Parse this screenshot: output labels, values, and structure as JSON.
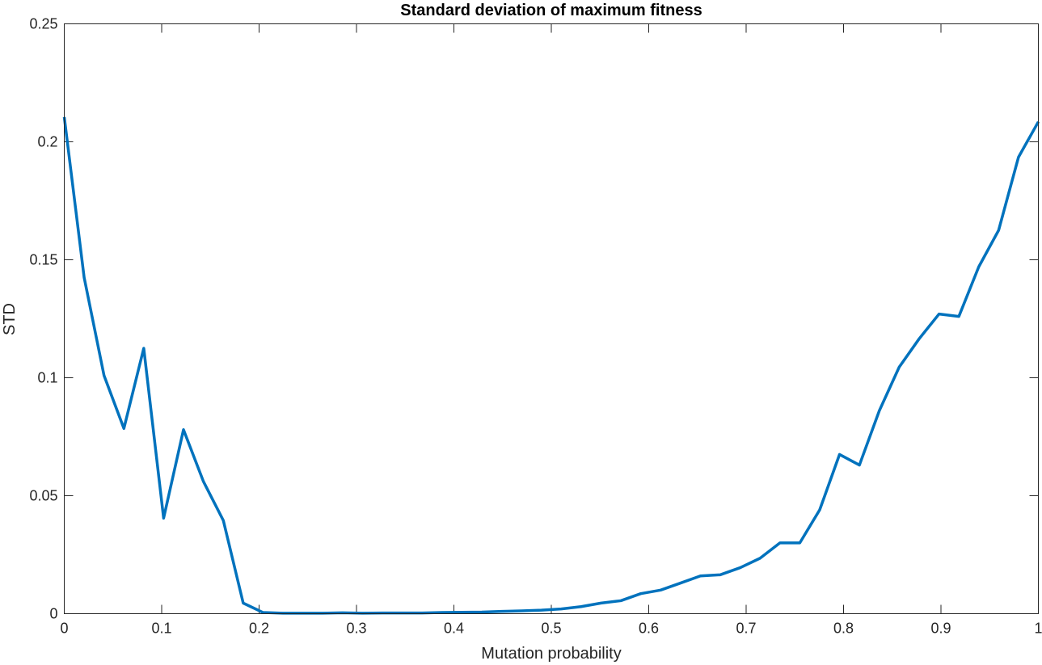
{
  "chart_data": {
    "type": "line",
    "title": "Standard deviation of maximum fitness",
    "xlabel": "Mutation probability",
    "ylabel": "STD",
    "xlim": [
      0,
      1
    ],
    "ylim": [
      0,
      0.25
    ],
    "xticks": [
      0,
      0.1,
      0.2,
      0.3,
      0.4,
      0.5,
      0.6,
      0.7,
      0.8,
      0.9,
      1
    ],
    "xtick_labels": [
      "0",
      "0.1",
      "0.2",
      "0.3",
      "0.4",
      "0.5",
      "0.6",
      "0.7",
      "0.8",
      "0.9",
      "1"
    ],
    "yticks": [
      0,
      0.05,
      0.1,
      0.15,
      0.2,
      0.25
    ],
    "ytick_labels": [
      "0",
      "0.05",
      "0.1",
      "0.15",
      "0.2",
      "0.25"
    ],
    "grid": false,
    "line_color": "#0072BD",
    "series": [
      {
        "x": [
          0,
          0.0204,
          0.0408,
          0.0612,
          0.0816,
          0.102,
          0.1224,
          0.1429,
          0.1633,
          0.1837,
          0.2041,
          0.2245,
          0.2449,
          0.2653,
          0.2857,
          0.3061,
          0.3265,
          0.3469,
          0.3673,
          0.3878,
          0.4082,
          0.4286,
          0.449,
          0.4694,
          0.4898,
          0.5102,
          0.5306,
          0.551,
          0.5714,
          0.5918,
          0.6122,
          0.6327,
          0.6531,
          0.6735,
          0.6939,
          0.7143,
          0.7347,
          0.7551,
          0.7755,
          0.7959,
          0.8163,
          0.8367,
          0.8571,
          0.8776,
          0.898,
          0.9184,
          0.9388,
          0.9592,
          0.9796,
          1.0
        ],
        "values": [
          0.2105,
          0.1425,
          0.101,
          0.0785,
          0.1125,
          0.0405,
          0.078,
          0.056,
          0.0395,
          0.0045,
          0.0005,
          0.0002,
          0.0002,
          0.0002,
          0.0004,
          0.0002,
          0.0003,
          0.0003,
          0.0003,
          0.0005,
          0.0006,
          0.0007,
          0.001,
          0.0012,
          0.0015,
          0.002,
          0.003,
          0.0045,
          0.0055,
          0.0085,
          0.01,
          0.013,
          0.016,
          0.0165,
          0.0195,
          0.0235,
          0.03,
          0.03,
          0.044,
          0.0675,
          0.063,
          0.086,
          0.1045,
          0.1165,
          0.127,
          0.126,
          0.147,
          0.1625,
          0.1935,
          0.2085
        ]
      }
    ]
  }
}
